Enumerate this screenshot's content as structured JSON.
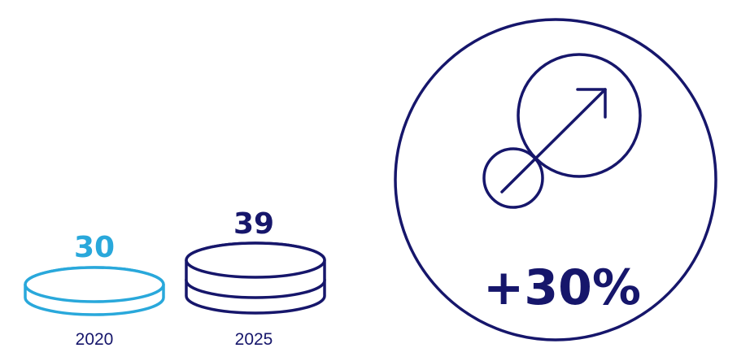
{
  "chart_data": {
    "type": "bar",
    "categories": [
      "2020",
      "2025"
    ],
    "values": [
      30,
      39
    ],
    "change_label": "+30%"
  },
  "colors": {
    "light_blue": "#29a8db",
    "navy": "#16166b",
    "background": "#ffffff"
  },
  "icons": {
    "growth": "arrow-up-right-between-circles-icon",
    "coin_stack": "coin-stack-icon"
  }
}
